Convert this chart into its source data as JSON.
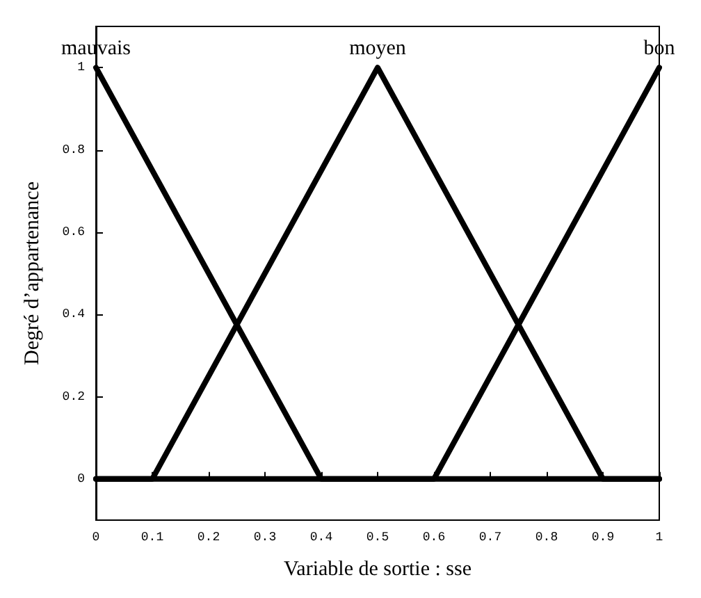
{
  "chart_data": {
    "type": "line",
    "xlabel": "Variable de sortie : sse",
    "ylabel": "Degré d’appartenance",
    "xlim": [
      0,
      1
    ],
    "xticks": [
      0,
      0.1,
      0.2,
      0.3,
      0.4,
      0.5,
      0.6,
      0.7,
      0.8,
      0.9,
      1
    ],
    "ylim": [
      -0.1,
      1.1
    ],
    "yticks": [
      0,
      0.2,
      0.4,
      0.6,
      0.8,
      1
    ],
    "series": [
      {
        "name": "mauvais",
        "color": "#000000",
        "x": [
          0,
          0.4,
          1
        ],
        "values": [
          1,
          0,
          0
        ]
      },
      {
        "name": "moyen",
        "color": "#000000",
        "x": [
          0,
          0.1,
          0.5,
          0.9,
          1
        ],
        "values": [
          0,
          0,
          1,
          0,
          0
        ]
      },
      {
        "name": "bon",
        "color": "#000000",
        "x": [
          0,
          0.6,
          1
        ],
        "values": [
          0,
          0,
          1
        ]
      }
    ],
    "grid": false,
    "legend": false,
    "marker": "none",
    "line_style": "solid"
  }
}
